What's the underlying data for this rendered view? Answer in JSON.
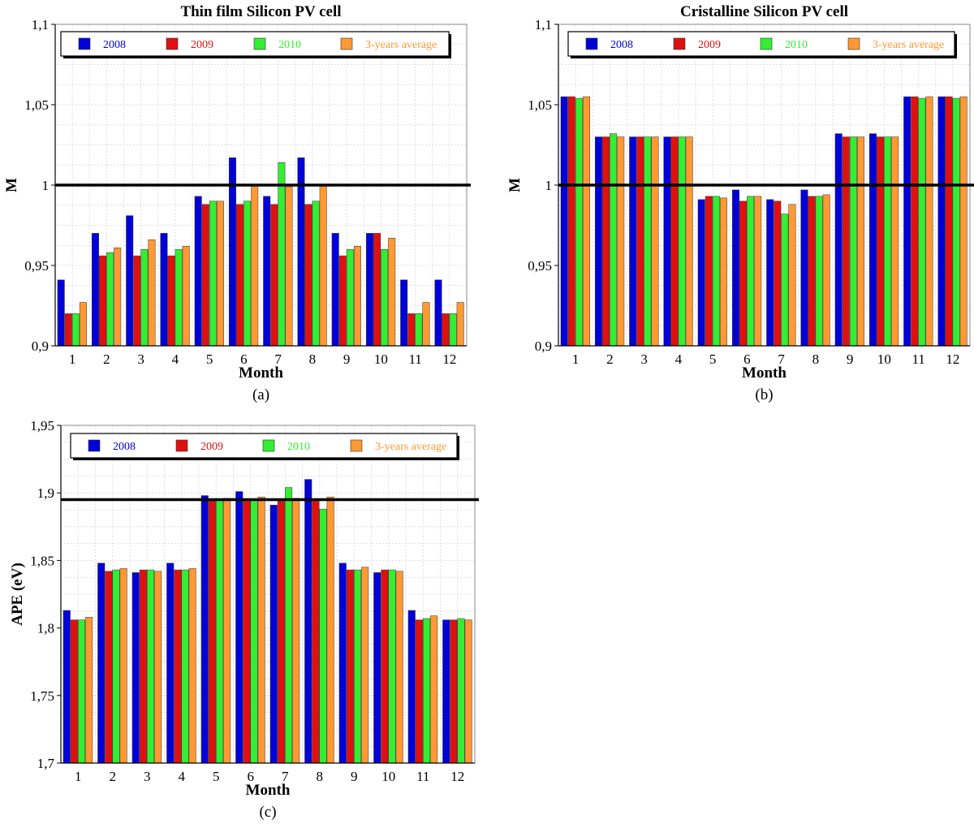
{
  "colors": {
    "s2008": "#0000d8",
    "s2009": "#e01010",
    "s2010": "#33ee33",
    "avg": "#ff9933",
    "grid": "#d8d8d8",
    "axis": "#000000",
    "reference_line": "#000000"
  },
  "chart_data": [
    {
      "id": "a",
      "type": "bar",
      "title": "Thin film Silicon PV cell",
      "xlabel": "Month",
      "ylabel": "M",
      "caption": "(a)",
      "categories": [
        "1",
        "2",
        "3",
        "4",
        "5",
        "6",
        "7",
        "8",
        "9",
        "10",
        "11",
        "12"
      ],
      "ylim": [
        0.9,
        1.1
      ],
      "yticks": [
        0.9,
        0.95,
        1.0,
        1.05,
        1.1
      ],
      "ytick_labels": [
        "0,9",
        "0,95",
        "1",
        "1,05",
        "1,1"
      ],
      "reference_line": 1.0,
      "grid": true,
      "legend_position": "top",
      "series": [
        {
          "name": "2008",
          "color_key": "s2008",
          "values": [
            0.941,
            0.97,
            0.981,
            0.97,
            0.993,
            1.017,
            0.993,
            1.017,
            0.97,
            0.97,
            0.941,
            0.941
          ]
        },
        {
          "name": "2009",
          "color_key": "s2009",
          "values": [
            0.92,
            0.956,
            0.956,
            0.956,
            0.988,
            0.988,
            0.988,
            0.988,
            0.956,
            0.97,
            0.92,
            0.92
          ]
        },
        {
          "name": "2010",
          "color_key": "s2010",
          "values": [
            0.92,
            0.958,
            0.96,
            0.96,
            0.99,
            0.99,
            1.014,
            0.99,
            0.96,
            0.96,
            0.92,
            0.92
          ]
        },
        {
          "name": "3-years average",
          "color_key": "avg",
          "values": [
            0.927,
            0.961,
            0.966,
            0.962,
            0.99,
            1.0,
            0.999,
            1.0,
            0.962,
            0.967,
            0.927,
            0.927
          ]
        }
      ]
    },
    {
      "id": "b",
      "type": "bar",
      "title": "Cristalline Silicon PV cell",
      "xlabel": "Month",
      "ylabel": "M",
      "caption": "(b)",
      "categories": [
        "1",
        "2",
        "3",
        "4",
        "5",
        "6",
        "7",
        "8",
        "9",
        "10",
        "11",
        "12"
      ],
      "ylim": [
        0.9,
        1.1
      ],
      "yticks": [
        0.9,
        0.95,
        1.0,
        1.05,
        1.1
      ],
      "ytick_labels": [
        "0,9",
        "0,95",
        "1",
        "1,05",
        "1,1"
      ],
      "reference_line": 1.0,
      "grid": true,
      "legend_position": "top",
      "series": [
        {
          "name": "2008",
          "color_key": "s2008",
          "values": [
            1.055,
            1.03,
            1.03,
            1.03,
            0.991,
            0.997,
            0.991,
            0.997,
            1.032,
            1.032,
            1.055,
            1.055
          ]
        },
        {
          "name": "2009",
          "color_key": "s2009",
          "values": [
            1.055,
            1.03,
            1.03,
            1.03,
            0.993,
            0.99,
            0.99,
            0.993,
            1.03,
            1.03,
            1.055,
            1.055
          ]
        },
        {
          "name": "2010",
          "color_key": "s2010",
          "values": [
            1.054,
            1.032,
            1.03,
            1.03,
            0.993,
            0.993,
            0.982,
            0.993,
            1.03,
            1.03,
            1.054,
            1.054
          ]
        },
        {
          "name": "3-years average",
          "color_key": "avg",
          "values": [
            1.055,
            1.03,
            1.03,
            1.03,
            0.992,
            0.993,
            0.988,
            0.994,
            1.03,
            1.03,
            1.055,
            1.055
          ]
        }
      ]
    },
    {
      "id": "c",
      "type": "bar",
      "title": "",
      "xlabel": "Month",
      "ylabel": "APE (eV)",
      "caption": "(c)",
      "categories": [
        "1",
        "2",
        "3",
        "4",
        "5",
        "6",
        "7",
        "8",
        "9",
        "10",
        "11",
        "12"
      ],
      "ylim": [
        1.7,
        1.95
      ],
      "yticks": [
        1.7,
        1.75,
        1.8,
        1.85,
        1.9,
        1.95
      ],
      "ytick_labels": [
        "1,7",
        "1,75",
        "1,8",
        "1,85",
        "1,9",
        "1,95"
      ],
      "reference_line": 1.895,
      "grid": true,
      "legend_position": "top",
      "series": [
        {
          "name": "2008",
          "color_key": "s2008",
          "values": [
            1.813,
            1.848,
            1.841,
            1.848,
            1.898,
            1.901,
            1.891,
            1.91,
            1.848,
            1.841,
            1.813,
            1.806
          ]
        },
        {
          "name": "2009",
          "color_key": "s2009",
          "values": [
            1.806,
            1.842,
            1.843,
            1.843,
            1.895,
            1.895,
            1.895,
            1.895,
            1.843,
            1.843,
            1.806,
            1.806
          ]
        },
        {
          "name": "2010",
          "color_key": "s2010",
          "values": [
            1.806,
            1.843,
            1.843,
            1.843,
            1.895,
            1.895,
            1.904,
            1.888,
            1.843,
            1.843,
            1.807,
            1.807
          ]
        },
        {
          "name": "3-years average",
          "color_key": "avg",
          "values": [
            1.808,
            1.844,
            1.842,
            1.844,
            1.896,
            1.897,
            1.896,
            1.897,
            1.845,
            1.842,
            1.809,
            1.806
          ]
        }
      ]
    }
  ]
}
